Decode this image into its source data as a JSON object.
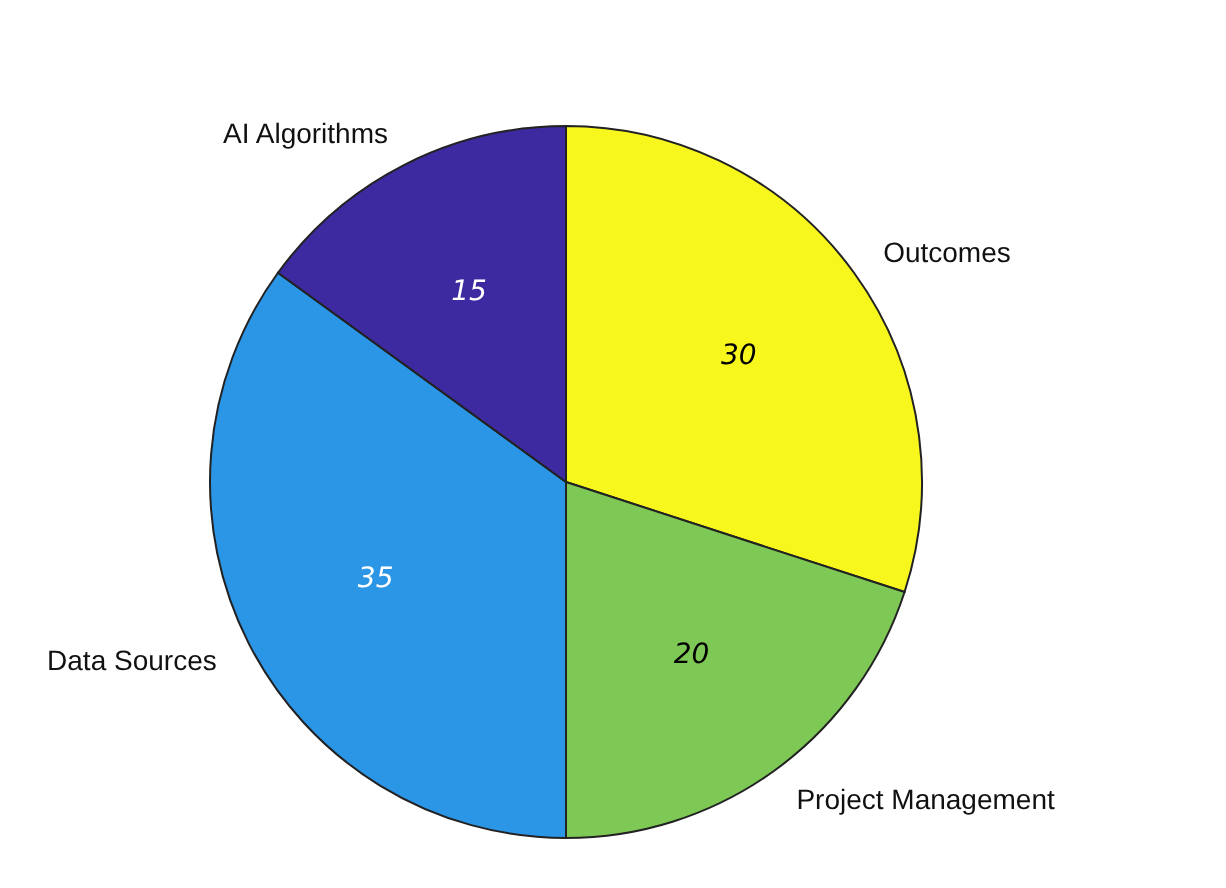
{
  "chart_data": {
    "type": "pie",
    "categories": [
      "Outcomes",
      "Project Management",
      "Data Sources",
      "AI Algorithms"
    ],
    "values": [
      30,
      20,
      35,
      15
    ],
    "colors": [
      "#f7f71e",
      "#7ec956",
      "#2b95e6",
      "#3d2aa0"
    ],
    "data_labels": true,
    "legend": false
  }
}
